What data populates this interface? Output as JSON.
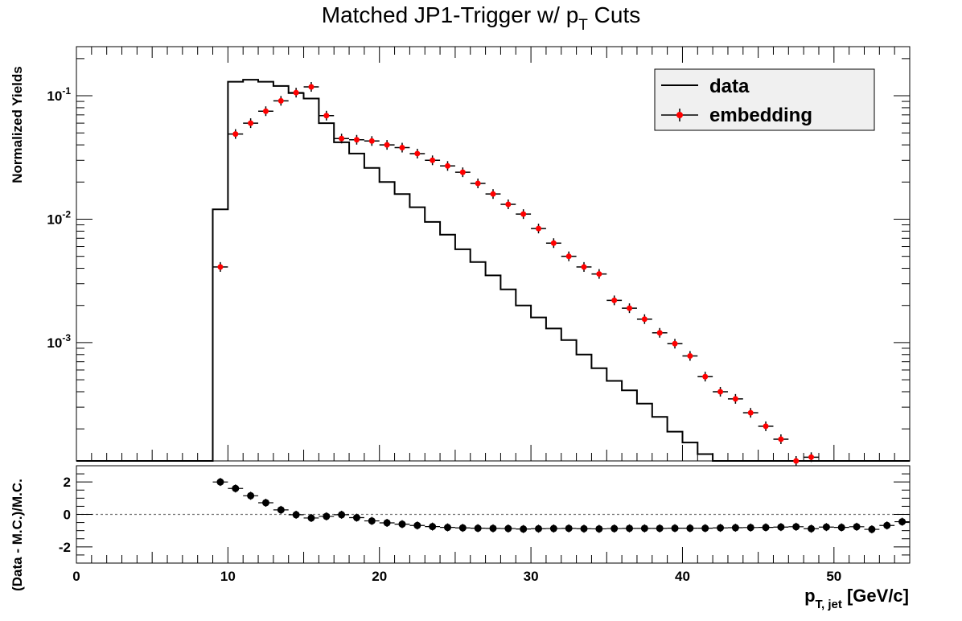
{
  "chart_data": [
    {
      "type": "line",
      "title": "Matched JP1-Trigger w/ p",
      "title_sub": "T",
      "title_tail": " Cuts",
      "ylabel": "Normalized Yields",
      "xlim": [
        0,
        55
      ],
      "ylim": [
        0.00011,
        0.25
      ],
      "yscale": "log",
      "yticks": [
        {
          "value": 0.1,
          "base": "10",
          "exp": "-1"
        },
        {
          "value": 0.01,
          "base": "10",
          "exp": "-2"
        },
        {
          "value": 0.001,
          "base": "10",
          "exp": "-3"
        }
      ],
      "legend_position": "top-right",
      "series": [
        {
          "name": "data",
          "kind": "step",
          "color": "#000000",
          "x_edges": [
            0,
            1,
            2,
            3,
            4,
            5,
            6,
            7,
            8,
            9,
            10,
            11,
            12,
            13,
            14,
            15,
            16,
            17,
            18,
            19,
            20,
            21,
            22,
            23,
            24,
            25,
            26,
            27,
            28,
            29,
            30,
            31,
            32,
            33,
            34,
            35,
            36,
            37,
            38,
            39,
            40,
            41,
            42,
            43,
            44,
            45,
            46,
            47,
            48,
            49,
            50,
            51,
            52,
            53,
            54,
            55
          ],
          "values": [
            0,
            0,
            0,
            0,
            0,
            0,
            0,
            0,
            0,
            0.012,
            0.13,
            0.135,
            0.13,
            0.12,
            0.105,
            0.095,
            0.06,
            0.042,
            0.034,
            0.026,
            0.02,
            0.016,
            0.0125,
            0.0095,
            0.0075,
            0.0057,
            0.0045,
            0.0035,
            0.0027,
            0.002,
            0.0016,
            0.0013,
            0.00105,
            0.0008,
            0.00062,
            0.00049,
            0.00041,
            0.00032,
            0.00025,
            0.00019,
            0.000155,
            0.000125,
            0.000105,
            0,
            0,
            0,
            0,
            0,
            0,
            0,
            0,
            0,
            0,
            0,
            0
          ]
        },
        {
          "name": "embedding",
          "kind": "points",
          "color": "#ff0000",
          "x": [
            9.5,
            10.5,
            11.5,
            12.5,
            13.5,
            14.5,
            15.5,
            16.5,
            17.5,
            18.5,
            19.5,
            20.5,
            21.5,
            22.5,
            23.5,
            24.5,
            25.5,
            26.5,
            27.5,
            28.5,
            29.5,
            30.5,
            31.5,
            32.5,
            33.5,
            34.5,
            35.5,
            36.5,
            37.5,
            38.5,
            39.5,
            40.5,
            41.5,
            42.5,
            43.5,
            44.5,
            45.5,
            46.5,
            47.5,
            48.5
          ],
          "values": [
            0.0041,
            0.049,
            0.06,
            0.075,
            0.091,
            0.106,
            0.118,
            0.069,
            0.045,
            0.044,
            0.043,
            0.04,
            0.038,
            0.034,
            0.03,
            0.027,
            0.024,
            0.0195,
            0.016,
            0.0132,
            0.011,
            0.0084,
            0.0064,
            0.005,
            0.0041,
            0.0036,
            0.0022,
            0.0019,
            0.00155,
            0.0012,
            0.00098,
            0.00078,
            0.00053,
            0.0004,
            0.00035,
            0.00027,
            0.00021,
            0.000165,
            0.00011,
            0.000118
          ]
        }
      ]
    },
    {
      "type": "scatter",
      "ylabel": "(Data - M.C.)/M.C.",
      "xlabel_main": "p",
      "xlabel_sub": "T, jet",
      "xlabel_tail": " [GeV/c]",
      "xlim": [
        0,
        55
      ],
      "ylim": [
        -3,
        3
      ],
      "yticks": [
        2,
        0,
        -2
      ],
      "xticks": [
        0,
        10,
        20,
        30,
        40,
        50
      ],
      "reference_line": 0,
      "series": [
        {
          "kind": "points",
          "color": "#000000",
          "x": [
            9.5,
            10.5,
            11.5,
            12.5,
            13.5,
            14.5,
            15.5,
            16.5,
            17.5,
            18.5,
            19.5,
            20.5,
            21.5,
            22.5,
            23.5,
            24.5,
            25.5,
            26.5,
            27.5,
            28.5,
            29.5,
            30.5,
            31.5,
            32.5,
            33.5,
            34.5,
            35.5,
            36.5,
            37.5,
            38.5,
            39.5,
            40.5,
            41.5,
            42.5,
            43.5,
            44.5,
            45.5,
            46.5,
            47.5,
            48.5,
            49.5,
            50.5,
            51.5,
            52.5,
            53.5,
            54.5
          ],
          "values": [
            2.0,
            1.6,
            1.15,
            0.72,
            0.28,
            -0.02,
            -0.22,
            -0.12,
            -0.02,
            -0.2,
            -0.4,
            -0.52,
            -0.6,
            -0.68,
            -0.75,
            -0.8,
            -0.83,
            -0.85,
            -0.86,
            -0.87,
            -0.9,
            -0.88,
            -0.87,
            -0.86,
            -0.88,
            -0.89,
            -0.87,
            -0.86,
            -0.86,
            -0.86,
            -0.85,
            -0.85,
            -0.85,
            -0.83,
            -0.82,
            -0.81,
            -0.8,
            -0.78,
            -0.76,
            -0.88,
            -0.78,
            -0.8,
            -0.76,
            -0.92,
            -0.68,
            -0.45
          ]
        }
      ]
    }
  ]
}
